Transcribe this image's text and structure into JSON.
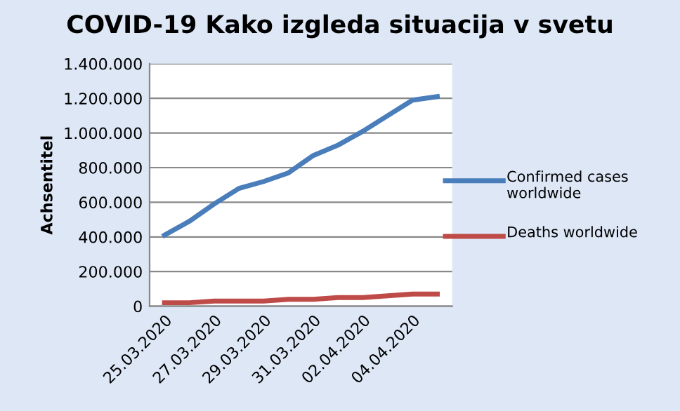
{
  "chart_data": {
    "type": "line",
    "title": "COVID-19 Kako izgleda situacija v svetu",
    "ylabel": "Achsentitel",
    "categories": [
      "25.03.2020",
      null,
      "27.03.2020",
      null,
      "29.03.2020",
      null,
      "31.03.2020",
      null,
      "02.04.2020",
      null,
      "04.04.2020",
      null
    ],
    "series": [
      {
        "name": "Confirmed cases worldwide",
        "color": "#4a7ebb",
        "values": [
          410000,
          490000,
          590000,
          680000,
          720000,
          770000,
          870000,
          930000,
          1010000,
          1100000,
          1190000,
          1210000
        ]
      },
      {
        "name": "Deaths worldwide",
        "color": "#be4b48",
        "values": [
          20000,
          20000,
          30000,
          30000,
          30000,
          40000,
          40000,
          50000,
          50000,
          60000,
          70000,
          70000
        ]
      }
    ],
    "ylim": [
      0,
      1400000
    ],
    "yticks": [
      {
        "value": 0,
        "label": "0"
      },
      {
        "value": 200000,
        "label": "200.000"
      },
      {
        "value": 400000,
        "label": "400.000"
      },
      {
        "value": 600000,
        "label": "600.000"
      },
      {
        "value": 800000,
        "label": "800.000"
      },
      {
        "value": 1000000,
        "label": "1.000.000"
      },
      {
        "value": 1200000,
        "label": "1.200.000"
      },
      {
        "value": 1400000,
        "label": "1.400.000"
      }
    ],
    "grid": "y",
    "legend": "right",
    "marker": "none",
    "line_style": "solid"
  }
}
